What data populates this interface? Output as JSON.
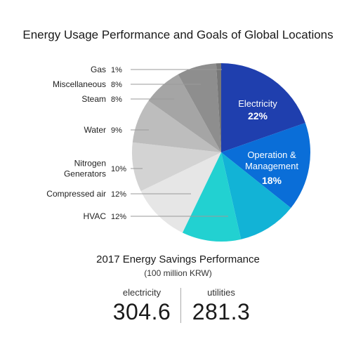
{
  "title": "Energy Usage Performance and Goals of Global Locations",
  "chart_data": {
    "type": "pie",
    "title": "Energy Usage Performance and Goals of Global Locations",
    "slices": [
      {
        "label": "Electricity",
        "value": 22,
        "display": "22%",
        "color": "#1f3fae"
      },
      {
        "label": "Operation & Management",
        "value": 18,
        "display": "18%",
        "color": "#0a6ed8"
      },
      {
        "label": "",
        "value": 12,
        "display": "",
        "color": "#12b3d6"
      },
      {
        "label": "HVAC",
        "value": 12,
        "display": "12%",
        "color": "#22d1d1"
      },
      {
        "label": "Compressed air",
        "value": 12,
        "display": "12%",
        "color": "#e6e6e6"
      },
      {
        "label": "Nitrogen Generators",
        "value": 10,
        "display": "10%",
        "color": "#d3d3d3"
      },
      {
        "label": "Water",
        "value": 9,
        "display": "9%",
        "color": "#bdbdbd"
      },
      {
        "label": "Steam",
        "value": 8,
        "display": "8%",
        "color": "#a5a5a5"
      },
      {
        "label": "Miscellaneous",
        "value": 8,
        "display": "8%",
        "color": "#8e8e8e"
      },
      {
        "label": "Gas",
        "value": 1,
        "display": "1%",
        "color": "#777777"
      }
    ]
  },
  "savings": {
    "title": "2017 Energy Savings Performance",
    "unit": "(100 million KRW)",
    "items": [
      {
        "label": "electricity",
        "value": "304.6"
      },
      {
        "label": "utilities",
        "value": "281.3"
      }
    ]
  }
}
